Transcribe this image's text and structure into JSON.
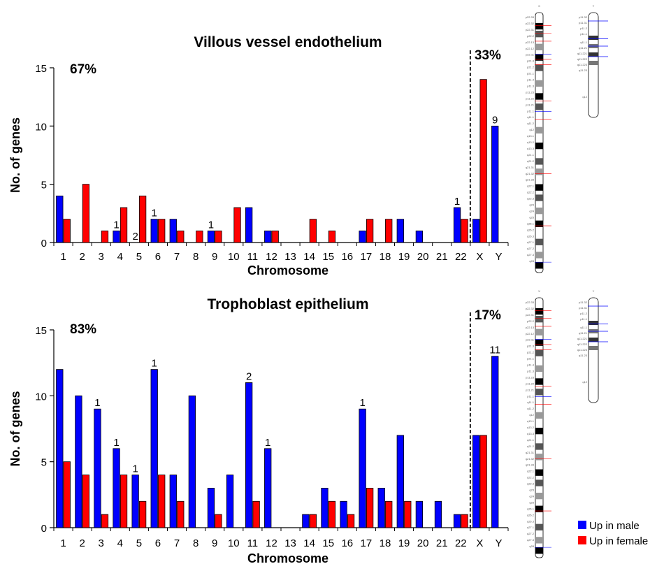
{
  "chart_data": [
    {
      "type": "bar",
      "title": "Villous vessel endothelium",
      "xlabel": "Chromosome",
      "ylabel": "No. of genes",
      "ylim": [
        0,
        15
      ],
      "yticks": [
        "0",
        "5",
        "10",
        "15"
      ],
      "categories": [
        "1",
        "2",
        "3",
        "4",
        "5",
        "6",
        "7",
        "8",
        "9",
        "10",
        "11",
        "12",
        "13",
        "14",
        "15",
        "16",
        "17",
        "18",
        "19",
        "20",
        "21",
        "22",
        "X",
        "Y"
      ],
      "series": [
        {
          "name": "Up in male",
          "color": "#0000ff",
          "values": [
            4,
            0,
            0,
            1,
            0,
            2,
            2,
            0,
            1,
            0,
            3,
            1,
            0,
            0,
            0,
            0,
            1,
            0,
            2,
            1,
            0,
            3,
            2,
            10
          ]
        },
        {
          "name": "Up in female",
          "color": "#ff0000",
          "values": [
            2,
            5,
            1,
            3,
            4,
            2,
            1,
            1,
            1,
            3,
            0,
            1,
            0,
            2,
            1,
            0,
            2,
            2,
            0,
            0,
            0,
            2,
            14,
            0
          ]
        }
      ],
      "data_labels": [
        {
          "category": "4",
          "text": "1"
        },
        {
          "category": "5",
          "text": "2"
        },
        {
          "category": "6",
          "text": "1"
        },
        {
          "category": "9",
          "text": "1"
        },
        {
          "category": "22",
          "text": "1"
        },
        {
          "category": "Y",
          "text": "9"
        }
      ],
      "annotations": {
        "autosomal_percent": "67%",
        "sex_percent": "33%"
      },
      "divider": "dashed line between 22 and X",
      "grid": false
    },
    {
      "type": "bar",
      "title": "Trophoblast epithelium",
      "xlabel": "Chromosome",
      "ylabel": "No. of genes",
      "ylim": [
        0,
        15
      ],
      "yticks": [
        "0",
        "5",
        "10",
        "15"
      ],
      "categories": [
        "1",
        "2",
        "3",
        "4",
        "5",
        "6",
        "7",
        "8",
        "9",
        "10",
        "11",
        "12",
        "13",
        "14",
        "15",
        "16",
        "17",
        "18",
        "19",
        "20",
        "21",
        "22",
        "X",
        "Y"
      ],
      "series": [
        {
          "name": "Up in male",
          "color": "#0000ff",
          "values": [
            12,
            10,
            9,
            6,
            4,
            12,
            4,
            10,
            3,
            4,
            11,
            6,
            0,
            1,
            3,
            2,
            9,
            3,
            7,
            2,
            2,
            1,
            7,
            13
          ]
        },
        {
          "name": "Up in female",
          "color": "#ff0000",
          "values": [
            5,
            4,
            1,
            4,
            2,
            4,
            2,
            0,
            1,
            0,
            2,
            0,
            0,
            1,
            2,
            1,
            3,
            2,
            2,
            0,
            0,
            1,
            7,
            0
          ]
        }
      ],
      "data_labels": [
        {
          "category": "3",
          "text": "1"
        },
        {
          "category": "4",
          "text": "1"
        },
        {
          "category": "5",
          "text": "1"
        },
        {
          "category": "6",
          "text": "1"
        },
        {
          "category": "11",
          "text": "2"
        },
        {
          "category": "12",
          "text": "1"
        },
        {
          "category": "17",
          "text": "1"
        },
        {
          "category": "Y",
          "text": "11"
        }
      ],
      "annotations": {
        "autosomal_percent": "83%",
        "sex_percent": "17%"
      },
      "divider": "dashed line between 22 and X",
      "grid": false
    }
  ],
  "legend": {
    "placement": "bottom-right",
    "items": [
      {
        "label": "Up in male",
        "color": "#0000ff"
      },
      {
        "label": "Up in female",
        "color": "#ff0000"
      }
    ]
  },
  "ideograms": {
    "chrom_labels": [
      "X",
      "Y"
    ],
    "x_bands": [
      "p22.33",
      "p22.32",
      "p22.31",
      "p22.2",
      "p22.13",
      "p22.12",
      "p22.11",
      "p21.3",
      "p21.2",
      "p21.1",
      "p11.4",
      "p11.3",
      "p11.23",
      "p11.22",
      "p11.21",
      "p11.1",
      "q11.1",
      "q11.2",
      "q12",
      "q13.1",
      "q13.2",
      "q13.3",
      "q21.1",
      "q21.2",
      "q21.31",
      "q21.32",
      "q21.33",
      "q22.1",
      "q22.2",
      "q22.3",
      "q23",
      "q24",
      "q25",
      "q26.1",
      "q26.2",
      "q26.3",
      "q27.1",
      "q27.2",
      "q27.3",
      "q28"
    ],
    "y_bands": [
      "p11.32",
      "p11.31",
      "p11.2",
      "p11.1",
      "q11.1",
      "q11.21",
      "q11.221",
      "q11.222",
      "q11.223",
      "q11.23",
      "q12"
    ]
  }
}
